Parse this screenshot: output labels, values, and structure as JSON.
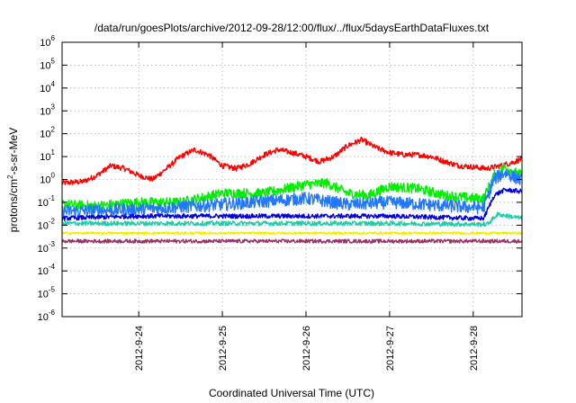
{
  "chart_data": {
    "type": "line",
    "title": "/data/run/goesPlots/archive/2012-09-28/12:00/flux/../flux/5daysEarthDataFluxes.txt",
    "xlabel": "Coordinated Universal Time (UTC)",
    "ylabel": "protons/cm²-s-sr-MeV",
    "ylabel_parts": {
      "pre": "protons/cm",
      "sup": "2",
      "post": "-s-sr-MeV"
    },
    "yscale": "log",
    "ylim": [
      1e-06,
      1000000.0
    ],
    "xlim": [
      "2012-09-23T02:00",
      "2012-09-28T14:00"
    ],
    "y_ticks": [
      {
        "value": 1e-06,
        "base": "10",
        "exp": "-6"
      },
      {
        "value": 1e-05,
        "base": "10",
        "exp": "-5"
      },
      {
        "value": 0.0001,
        "base": "10",
        "exp": "-4"
      },
      {
        "value": 0.001,
        "base": "10",
        "exp": "-3"
      },
      {
        "value": 0.01,
        "base": "10",
        "exp": "-2"
      },
      {
        "value": 0.1,
        "base": "10",
        "exp": "-1"
      },
      {
        "value": 1,
        "base": "10",
        "exp": "0"
      },
      {
        "value": 10.0,
        "base": "10",
        "exp": "1"
      },
      {
        "value": 100.0,
        "base": "10",
        "exp": "2"
      },
      {
        "value": 1000.0,
        "base": "10",
        "exp": "3"
      },
      {
        "value": 10000.0,
        "base": "10",
        "exp": "4"
      },
      {
        "value": 100000.0,
        "base": "10",
        "exp": "5"
      },
      {
        "value": 1000000.0,
        "base": "10",
        "exp": "6"
      }
    ],
    "x_ticks": [
      {
        "value": "2012-09-24T00:00",
        "label": "2012-9-24"
      },
      {
        "value": "2012-09-25T00:00",
        "label": "2012-9-25"
      },
      {
        "value": "2012-09-26T00:00",
        "label": "2012-9-26"
      },
      {
        "value": "2012-09-27T00:00",
        "label": "2012-9-27"
      },
      {
        "value": "2012-09-28T00:00",
        "label": "2012-9-28"
      }
    ],
    "grid": true,
    "legend": "none",
    "series": [
      {
        "color": "#ff0000",
        "noise": 0.12,
        "points": [
          [
            "2012-09-23T02:00",
            0.7
          ],
          [
            "2012-09-23T08:00",
            0.8
          ],
          [
            "2012-09-23T12:00",
            1.5
          ],
          [
            "2012-09-23T16:00",
            4.0
          ],
          [
            "2012-09-23T20:00",
            3.0
          ],
          [
            "2012-09-24T00:00",
            1.5
          ],
          [
            "2012-09-24T04:00",
            1.0
          ],
          [
            "2012-09-24T08:00",
            3.0
          ],
          [
            "2012-09-24T12:00",
            10
          ],
          [
            "2012-09-24T16:00",
            20
          ],
          [
            "2012-09-24T20:00",
            12
          ],
          [
            "2012-09-25T00:00",
            4.0
          ],
          [
            "2012-09-25T04:00",
            3.0
          ],
          [
            "2012-09-25T08:00",
            5.0
          ],
          [
            "2012-09-25T12:00",
            12
          ],
          [
            "2012-09-25T16:00",
            20
          ],
          [
            "2012-09-25T20:00",
            15
          ],
          [
            "2012-09-26T00:00",
            10
          ],
          [
            "2012-09-26T04:00",
            6.0
          ],
          [
            "2012-09-26T08:00",
            10
          ],
          [
            "2012-09-26T12:00",
            30
          ],
          [
            "2012-09-26T16:00",
            55
          ],
          [
            "2012-09-26T20:00",
            25
          ],
          [
            "2012-09-27T00:00",
            15
          ],
          [
            "2012-09-27T04:00",
            12
          ],
          [
            "2012-09-27T08:00",
            12
          ],
          [
            "2012-09-27T12:00",
            10
          ],
          [
            "2012-09-27T16:00",
            6.0
          ],
          [
            "2012-09-27T20:00",
            4.0
          ],
          [
            "2012-09-28T00:00",
            3.5
          ],
          [
            "2012-09-28T04:00",
            3.0
          ],
          [
            "2012-09-28T08:00",
            4.0
          ],
          [
            "2012-09-28T12:00",
            6.0
          ],
          [
            "2012-09-28T14:00",
            8.0
          ]
        ]
      },
      {
        "color": "#00ee00",
        "noise": 0.22,
        "points": [
          [
            "2012-09-23T02:00",
            0.08
          ],
          [
            "2012-09-23T12:00",
            0.07
          ],
          [
            "2012-09-24T00:00",
            0.1
          ],
          [
            "2012-09-24T12:00",
            0.1
          ],
          [
            "2012-09-25T00:00",
            0.25
          ],
          [
            "2012-09-25T12:00",
            0.25
          ],
          [
            "2012-09-26T00:00",
            0.6
          ],
          [
            "2012-09-26T06:00",
            0.7
          ],
          [
            "2012-09-26T12:00",
            0.25
          ],
          [
            "2012-09-26T18:00",
            0.2
          ],
          [
            "2012-09-27T00:00",
            0.5
          ],
          [
            "2012-09-27T08:00",
            0.4
          ],
          [
            "2012-09-27T16:00",
            0.2
          ],
          [
            "2012-09-28T00:00",
            0.15
          ],
          [
            "2012-09-28T03:00",
            0.15
          ],
          [
            "2012-09-28T06:00",
            1.5
          ],
          [
            "2012-09-28T09:00",
            3.5
          ],
          [
            "2012-09-28T12:00",
            2.0
          ],
          [
            "2012-09-28T14:00",
            1.5
          ]
        ]
      },
      {
        "color": "#2277ff",
        "noise": 0.28,
        "points": [
          [
            "2012-09-23T02:00",
            0.04
          ],
          [
            "2012-09-24T00:00",
            0.05
          ],
          [
            "2012-09-25T00:00",
            0.08
          ],
          [
            "2012-09-26T00:00",
            0.15
          ],
          [
            "2012-09-26T12:00",
            0.08
          ],
          [
            "2012-09-27T00:00",
            0.1
          ],
          [
            "2012-09-28T00:00",
            0.06
          ],
          [
            "2012-09-28T03:00",
            0.06
          ],
          [
            "2012-09-28T06:00",
            1.0
          ],
          [
            "2012-09-28T09:00",
            2.0
          ],
          [
            "2012-09-28T14:00",
            0.9
          ]
        ]
      },
      {
        "color": "#0000dd",
        "noise": 0.1,
        "points": [
          [
            "2012-09-23T02:00",
            0.02
          ],
          [
            "2012-09-24T00:00",
            0.025
          ],
          [
            "2012-09-25T00:00",
            0.025
          ],
          [
            "2012-09-26T00:00",
            0.025
          ],
          [
            "2012-09-27T00:00",
            0.025
          ],
          [
            "2012-09-28T00:00",
            0.02
          ],
          [
            "2012-09-28T03:00",
            0.02
          ],
          [
            "2012-09-28T06:00",
            0.2
          ],
          [
            "2012-09-28T09:00",
            0.35
          ],
          [
            "2012-09-28T14:00",
            0.3
          ]
        ]
      },
      {
        "color": "#22ccaa",
        "noise": 0.1,
        "points": [
          [
            "2012-09-23T02:00",
            0.012
          ],
          [
            "2012-09-24T00:00",
            0.012
          ],
          [
            "2012-09-25T00:00",
            0.012
          ],
          [
            "2012-09-26T00:00",
            0.012
          ],
          [
            "2012-09-27T00:00",
            0.012
          ],
          [
            "2012-09-28T00:00",
            0.011
          ],
          [
            "2012-09-28T04:00",
            0.011
          ],
          [
            "2012-09-28T07:00",
            0.03
          ],
          [
            "2012-09-28T10:00",
            0.025
          ],
          [
            "2012-09-28T14:00",
            0.02
          ]
        ]
      },
      {
        "color": "#eeee00",
        "noise": 0.05,
        "points": [
          [
            "2012-09-23T02:00",
            0.0045
          ],
          [
            "2012-09-26T00:00",
            0.0045
          ],
          [
            "2012-09-28T14:00",
            0.0045
          ]
        ]
      },
      {
        "color": "#993366",
        "noise": 0.08,
        "points": [
          [
            "2012-09-23T02:00",
            0.002
          ],
          [
            "2012-09-26T00:00",
            0.002
          ],
          [
            "2012-09-28T14:00",
            0.002
          ]
        ]
      }
    ]
  }
}
